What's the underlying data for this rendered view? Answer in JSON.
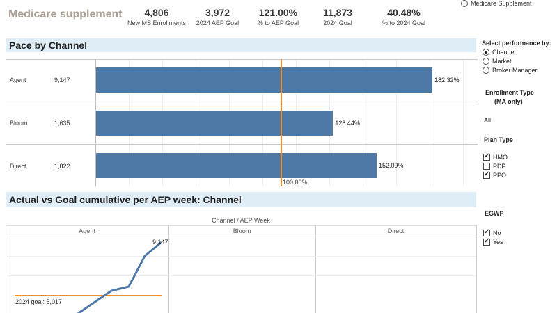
{
  "header": {
    "title": "Medicare supplement",
    "kpis": [
      {
        "value": "4,806",
        "label": "New MS Enrollments"
      },
      {
        "value": "3,972",
        "label": "2024 AEP Goal"
      },
      {
        "value": "121.00%",
        "label": "% to AEP Goal"
      },
      {
        "value": "11,873",
        "label": "2024 Goal"
      },
      {
        "value": "40.48%",
        "label": "% to 2024  Goal"
      }
    ],
    "top_radio_label": "Medicare Supplement"
  },
  "pace": {
    "title": "Pace by Channel",
    "goal_label": "100.00%",
    "rows": [
      {
        "name": "Agent",
        "count": "9,147",
        "pct_label": "182.32%",
        "pct": 182.32
      },
      {
        "name": "Bloom",
        "count": "1,635",
        "pct_label": "128.44%",
        "pct": 128.44
      },
      {
        "name": "Direct",
        "count": "1,822",
        "pct_label": "152.09%",
        "pct": 152.09
      }
    ]
  },
  "cumulative": {
    "title": "Actual vs Goal cumulative per AEP week: Channel",
    "axis_title": "Channel  /  AEP Week",
    "panels": [
      "Agent",
      "Bloom",
      "Direct"
    ],
    "end_label": "9,147",
    "goal_label": "2024 goal:  5,017"
  },
  "sidebar": {
    "performance_title": "Select performance by:",
    "performance_options": [
      {
        "label": "Channel",
        "selected": true
      },
      {
        "label": "Market",
        "selected": false
      },
      {
        "label": "Broker Manager",
        "selected": false
      }
    ],
    "enrollment_title_1": "Enrollment Type",
    "enrollment_title_2": "(MA only)",
    "enrollment_value": "All",
    "plan_title": "Plan Type",
    "plan_options": [
      {
        "label": "HMO",
        "checked": true
      },
      {
        "label": "PDP",
        "checked": false
      },
      {
        "label": "PPO",
        "checked": true
      }
    ],
    "egwp_title": "EGWP",
    "egwp_options": [
      {
        "label": "No",
        "checked": true
      },
      {
        "label": "Yes",
        "checked": true
      }
    ]
  },
  "colors": {
    "bar": "#4e79a7",
    "goal": "#f28e2b",
    "header_bg": "#dfeef6"
  },
  "chart_data": {
    "type": "bar",
    "title": "Pace by Channel",
    "categories": [
      "Agent",
      "Bloom",
      "Direct"
    ],
    "values": [
      182.32,
      128.44,
      152.09
    ],
    "reference_line": 100.0,
    "xlabel": "",
    "ylabel": ""
  }
}
